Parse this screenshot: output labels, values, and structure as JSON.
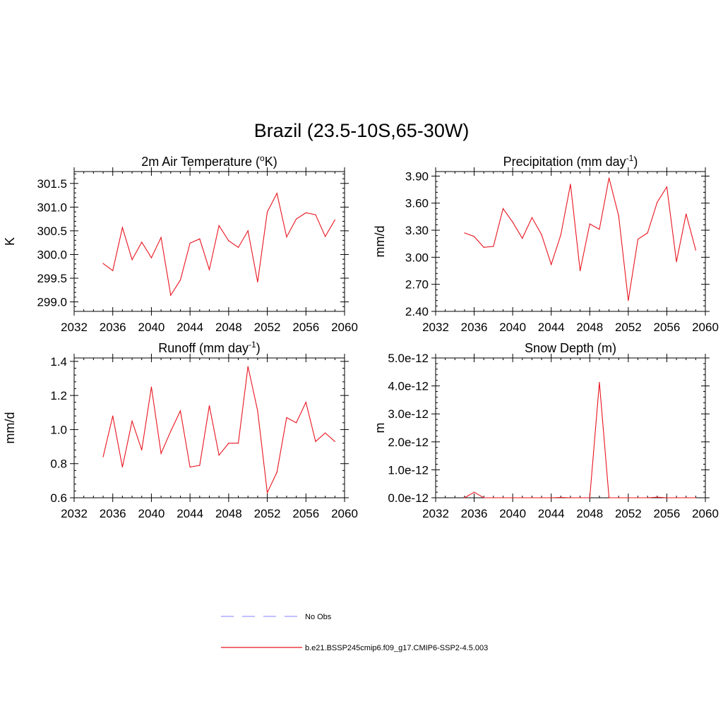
{
  "title": "Brazil (23.5-10S,65-30W)",
  "colors": {
    "model_line": "#e8141e",
    "obs_line": "#9a9aff",
    "axis": "#000000"
  },
  "legend": [
    {
      "label": "No Obs",
      "style": "dashed",
      "color": "#9a9aff"
    },
    {
      "label": "b.e21.BSSP245cmip6.f09_g17.CMIP6-SSP2-4.5.003",
      "style": "solid",
      "color": "#e8141e"
    }
  ],
  "chart_data": [
    {
      "type": "line",
      "title_main": "2m Air Temperature (",
      "title_sup": "o",
      "title_after": "K)",
      "xlabel": "",
      "ylabel": "K",
      "xlim": [
        2032,
        2060
      ],
      "ylim": [
        298.8,
        301.75
      ],
      "xticks": [
        2032,
        2036,
        2040,
        2044,
        2048,
        2052,
        2056,
        2060
      ],
      "yticks": [
        299.0,
        299.5,
        300.0,
        300.5,
        301.0,
        301.5
      ],
      "ytick_labels": [
        "299.0",
        "299.5",
        "300.0",
        "300.5",
        "301.0",
        "301.5"
      ],
      "x": [
        2035,
        2036,
        2037,
        2038,
        2039,
        2040,
        2041,
        2042,
        2043,
        2044,
        2045,
        2046,
        2047,
        2048,
        2049,
        2050,
        2051,
        2052,
        2053,
        2054,
        2055,
        2056,
        2057,
        2058,
        2059
      ],
      "series": [
        {
          "name": "b.e21.BSSP245cmip6.f09_g17.CMIP6-SSP2-4.5.003",
          "values": [
            299.81,
            299.66,
            300.57,
            299.89,
            300.26,
            299.93,
            300.36,
            299.14,
            299.46,
            300.24,
            300.33,
            299.68,
            300.61,
            300.29,
            300.15,
            300.5,
            299.42,
            300.9,
            301.29,
            300.37,
            300.75,
            300.88,
            300.84,
            300.38,
            300.73
          ]
        }
      ]
    },
    {
      "type": "line",
      "title_main": "Precipitation (mm day",
      "title_sup": "-1",
      "title_after": ")",
      "xlabel": "",
      "ylabel": "mm/d",
      "xlim": [
        2032,
        2060
      ],
      "ylim": [
        2.4,
        3.95
      ],
      "xticks": [
        2032,
        2036,
        2040,
        2044,
        2048,
        2052,
        2056,
        2060
      ],
      "yticks": [
        2.4,
        2.7,
        3.0,
        3.3,
        3.6,
        3.9
      ],
      "ytick_labels": [
        "2.40",
        "2.70",
        "3.00",
        "3.30",
        "3.60",
        "3.90"
      ],
      "x": [
        2035,
        2036,
        2037,
        2038,
        2039,
        2040,
        2041,
        2042,
        2043,
        2044,
        2045,
        2046,
        2047,
        2048,
        2049,
        2050,
        2051,
        2052,
        2053,
        2054,
        2055,
        2056,
        2057,
        2058,
        2059
      ],
      "series": [
        {
          "name": "b.e21.BSSP245cmip6.f09_g17.CMIP6-SSP2-4.5.003",
          "values": [
            3.27,
            3.23,
            3.11,
            3.12,
            3.54,
            3.39,
            3.21,
            3.44,
            3.25,
            2.92,
            3.25,
            3.81,
            2.85,
            3.37,
            3.31,
            3.88,
            3.46,
            2.52,
            3.2,
            3.27,
            3.61,
            3.78,
            2.95,
            3.48,
            3.08
          ]
        }
      ]
    },
    {
      "type": "line",
      "title_main": "Runoff (mm day",
      "title_sup": "-1",
      "title_after": ")",
      "xlabel": "",
      "ylabel": "mm/d",
      "xlim": [
        2032,
        2060
      ],
      "ylim": [
        0.6,
        1.42
      ],
      "xticks": [
        2032,
        2036,
        2040,
        2044,
        2048,
        2052,
        2056,
        2060
      ],
      "yticks": [
        0.6,
        0.8,
        1.0,
        1.2,
        1.4
      ],
      "ytick_labels": [
        "0.6",
        "0.8",
        "1.0",
        "1.2",
        "1.4"
      ],
      "x": [
        2035,
        2036,
        2037,
        2038,
        2039,
        2040,
        2041,
        2042,
        2043,
        2044,
        2045,
        2046,
        2047,
        2048,
        2049,
        2050,
        2051,
        2052,
        2053,
        2054,
        2055,
        2056,
        2057,
        2058,
        2059
      ],
      "series": [
        {
          "name": "b.e21.BSSP245cmip6.f09_g17.CMIP6-SSP2-4.5.003",
          "values": [
            0.84,
            1.08,
            0.78,
            1.05,
            0.88,
            1.25,
            0.86,
            0.99,
            1.11,
            0.78,
            0.79,
            1.14,
            0.85,
            0.92,
            0.92,
            1.37,
            1.11,
            0.63,
            0.75,
            1.07,
            1.04,
            1.16,
            0.93,
            0.98,
            0.93
          ]
        }
      ]
    },
    {
      "type": "line",
      "title_main": "Snow Depth (m)",
      "title_sup": "",
      "title_after": "",
      "xlabel": "",
      "ylabel": "m",
      "xlim": [
        2032,
        2060
      ],
      "ylim": [
        0,
        5e-12
      ],
      "xticks": [
        2032,
        2036,
        2040,
        2044,
        2048,
        2052,
        2056,
        2060
      ],
      "yticks": [
        0,
        1e-12,
        2e-12,
        3e-12,
        4e-12,
        5e-12
      ],
      "ytick_labels": [
        "0.0e-12",
        "1.0e-12",
        "2.0e-12",
        "3.0e-12",
        "4.0e-12",
        "5.0e-12"
      ],
      "x": [
        2035,
        2036,
        2037,
        2038,
        2039,
        2040,
        2041,
        2042,
        2043,
        2044,
        2045,
        2046,
        2047,
        2048,
        2049,
        2050,
        2051,
        2052,
        2053,
        2054,
        2055,
        2056,
        2057,
        2058,
        2059
      ],
      "series": [
        {
          "name": "b.e21.BSSP245cmip6.f09_g17.CMIP6-SSP2-4.5.003",
          "values": [
            0,
            2e-13,
            0,
            0,
            0,
            0,
            0,
            0,
            0,
            0,
            1e-14,
            0,
            0,
            0,
            4.13e-12,
            0,
            0,
            0,
            0,
            0,
            2e-14,
            0,
            0,
            0,
            0
          ]
        }
      ]
    }
  ]
}
